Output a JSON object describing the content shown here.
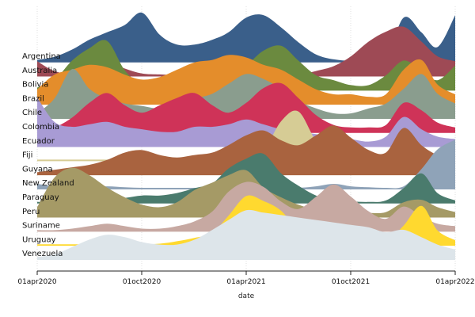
{
  "chart_data": {
    "type": "area",
    "subtype": "ridgeline",
    "xlabel": "date",
    "x_ticks": [
      "01apr2020",
      "01oct2020",
      "01apr2021",
      "01oct2021",
      "01apr2022"
    ],
    "xlim": [
      "2020-04-01",
      "2022-04-01"
    ],
    "x": [
      "2020-04-01",
      "2020-05-01",
      "2020-06-01",
      "2020-07-01",
      "2020-08-01",
      "2020-09-01",
      "2020-10-01",
      "2020-11-01",
      "2020-12-01",
      "2021-01-01",
      "2021-02-01",
      "2021-03-01",
      "2021-04-01",
      "2021-05-01",
      "2021-06-01",
      "2021-07-01",
      "2021-08-01",
      "2021-09-01",
      "2021-10-01",
      "2021-11-01",
      "2021-12-01",
      "2022-01-01",
      "2022-02-01",
      "2022-03-01",
      "2022-04-01"
    ],
    "value_unit": "relative",
    "grid": "vertical",
    "series": [
      {
        "name": "Argentina",
        "color": "#3a5f8a",
        "values": [
          0.04,
          0.1,
          0.25,
          0.45,
          0.6,
          0.75,
          1.0,
          0.55,
          0.35,
          0.35,
          0.45,
          0.6,
          0.9,
          0.95,
          0.7,
          0.4,
          0.15,
          0.05,
          0.02,
          0.02,
          0.05,
          0.9,
          0.6,
          0.3,
          0.95
        ]
      },
      {
        "name": "Australia",
        "color": "#9e4a55",
        "values": [
          0.3,
          0.1,
          0.05,
          0.2,
          0.3,
          0.15,
          0.05,
          0.03,
          0.02,
          0.02,
          0.02,
          0.02,
          0.02,
          0.02,
          0.02,
          0.02,
          0.1,
          0.2,
          0.4,
          0.7,
          0.9,
          1.0,
          0.7,
          0.4,
          0.3
        ]
      },
      {
        "name": "Bolivia",
        "color": "#6b8a3f",
        "values": [
          0.05,
          0.2,
          0.6,
          0.85,
          1.0,
          0.4,
          0.1,
          0.05,
          0.1,
          0.3,
          0.4,
          0.3,
          0.5,
          0.8,
          0.9,
          0.6,
          0.3,
          0.2,
          0.1,
          0.1,
          0.3,
          0.6,
          0.4,
          0.2,
          0.5
        ]
      },
      {
        "name": "Brazil",
        "color": "#e48d2b",
        "values": [
          0.3,
          0.6,
          0.7,
          0.8,
          0.75,
          0.6,
          0.5,
          0.55,
          0.7,
          0.85,
          0.9,
          1.0,
          0.95,
          0.8,
          0.7,
          0.5,
          0.3,
          0.2,
          0.2,
          0.15,
          0.2,
          0.7,
          0.9,
          0.4,
          0.2
        ]
      },
      {
        "name": "Chile",
        "color": "#8a9d8e",
        "values": [
          0.1,
          0.4,
          1.0,
          0.6,
          0.4,
          0.3,
          0.25,
          0.2,
          0.3,
          0.4,
          0.5,
          0.7,
          0.9,
          0.8,
          0.6,
          0.35,
          0.2,
          0.1,
          0.1,
          0.2,
          0.3,
          0.6,
          0.9,
          0.5,
          0.3
        ]
      },
      {
        "name": "Colombia",
        "color": "#cf3358",
        "values": [
          0.05,
          0.1,
          0.3,
          0.6,
          0.8,
          0.55,
          0.4,
          0.55,
          0.7,
          0.8,
          0.55,
          0.4,
          0.6,
          0.9,
          1.0,
          0.7,
          0.35,
          0.15,
          0.1,
          0.1,
          0.15,
          0.6,
          0.45,
          0.2,
          0.1
        ]
      },
      {
        "name": "Ecuador",
        "color": "#a89bd4",
        "values": [
          1.0,
          0.5,
          0.4,
          0.45,
          0.5,
          0.4,
          0.35,
          0.3,
          0.3,
          0.4,
          0.4,
          0.45,
          0.55,
          0.45,
          0.35,
          0.3,
          0.25,
          0.2,
          0.15,
          0.1,
          0.2,
          0.6,
          0.35,
          0.2,
          0.15
        ]
      },
      {
        "name": "Fiji",
        "color": "#d6cc95",
        "values": [
          0.02,
          0.02,
          0.02,
          0.02,
          0.02,
          0.02,
          0.02,
          0.02,
          0.02,
          0.02,
          0.02,
          0.02,
          0.05,
          0.2,
          0.8,
          1.0,
          0.4,
          0.1,
          0.03,
          0.02,
          0.02,
          0.1,
          0.05,
          0.03,
          0.02
        ]
      },
      {
        "name": "Guyana",
        "color": "#a9633f",
        "values": [
          0.05,
          0.1,
          0.15,
          0.2,
          0.3,
          0.45,
          0.5,
          0.4,
          0.35,
          0.4,
          0.45,
          0.6,
          0.8,
          0.9,
          0.7,
          0.6,
          0.8,
          1.0,
          0.75,
          0.5,
          0.45,
          0.95,
          0.6,
          0.4,
          0.3
        ]
      },
      {
        "name": "New Zealand",
        "color": "#8fa3b8",
        "values": [
          0.1,
          0.05,
          0.02,
          0.02,
          0.05,
          0.03,
          0.02,
          0.02,
          0.02,
          0.02,
          0.02,
          0.02,
          0.02,
          0.02,
          0.02,
          0.02,
          0.05,
          0.1,
          0.05,
          0.03,
          0.02,
          0.05,
          0.4,
          0.8,
          1.0
        ]
      },
      {
        "name": "Paraguay",
        "color": "#4a7b6d",
        "values": [
          0.02,
          0.02,
          0.02,
          0.03,
          0.05,
          0.1,
          0.15,
          0.15,
          0.2,
          0.3,
          0.4,
          0.7,
          0.9,
          1.0,
          0.6,
          0.35,
          0.15,
          0.05,
          0.03,
          0.02,
          0.05,
          0.3,
          0.6,
          0.2,
          0.05
        ]
      },
      {
        "name": "Peru",
        "color": "#a59a66",
        "values": [
          0.2,
          0.8,
          1.0,
          0.85,
          0.6,
          0.4,
          0.25,
          0.2,
          0.3,
          0.55,
          0.7,
          0.85,
          0.95,
          0.6,
          0.4,
          0.25,
          0.15,
          0.1,
          0.08,
          0.08,
          0.1,
          0.3,
          0.35,
          0.2,
          0.1
        ]
      },
      {
        "name": "Suriname",
        "color": "#c7a9a2",
        "values": [
          0.02,
          0.02,
          0.05,
          0.1,
          0.15,
          0.1,
          0.05,
          0.05,
          0.1,
          0.2,
          0.4,
          0.8,
          1.0,
          0.9,
          0.6,
          0.45,
          0.7,
          0.95,
          0.7,
          0.4,
          0.25,
          0.5,
          0.3,
          0.15,
          0.1
        ]
      },
      {
        "name": "Uruguay",
        "color": "#ffd92f",
        "values": [
          0.02,
          0.02,
          0.02,
          0.02,
          0.02,
          0.02,
          0.02,
          0.03,
          0.08,
          0.15,
          0.25,
          0.6,
          1.0,
          0.9,
          0.7,
          0.3,
          0.1,
          0.05,
          0.03,
          0.03,
          0.05,
          0.4,
          0.8,
          0.3,
          0.1
        ]
      },
      {
        "name": "Venezuela",
        "color": "#dde5ea",
        "values": [
          0.05,
          0.1,
          0.25,
          0.4,
          0.5,
          0.45,
          0.35,
          0.3,
          0.3,
          0.4,
          0.6,
          0.8,
          1.0,
          0.95,
          0.9,
          0.85,
          0.8,
          0.75,
          0.7,
          0.65,
          0.55,
          0.6,
          0.45,
          0.3,
          0.2
        ]
      }
    ]
  }
}
